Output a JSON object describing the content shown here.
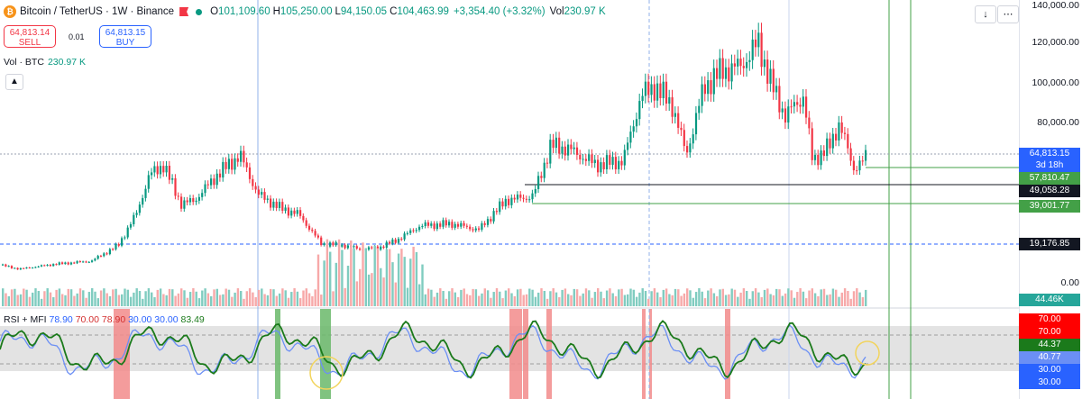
{
  "header": {
    "symbol": "Bitcoin / TetherUS · 1W · Binance",
    "o_label": "O",
    "o_value": "101,109.60",
    "h_label": "H",
    "h_value": "105,250.00",
    "l_label": "L",
    "l_value": "94,150.05",
    "c_label": "C",
    "c_value": "104,463.99",
    "change": "+3,354.40 (+3.32%)",
    "vol_label": "Vol",
    "vol_value": "230.97 K"
  },
  "trade": {
    "sell_price": "64,813.14",
    "sell_label": "SELL",
    "spread": "0.01",
    "buy_price": "64,813.15",
    "buy_label": "BUY"
  },
  "volume_legend": {
    "label": "Vol · BTC",
    "value": "230.97 K"
  },
  "collapse_icon": "▲",
  "controls": {
    "down": "↓",
    "more": "⋯"
  },
  "rsi_legend": {
    "name": "RSI + MFI",
    "v1": "78.90",
    "v2": "70.00",
    "v3": "78.90",
    "v4": "30.00",
    "v5": "30.00",
    "v6": "83.49"
  },
  "price_scale": {
    "ticks": [
      "140,000.00",
      "120,000.00",
      "100,000.00",
      "80,000.00",
      "0.00"
    ]
  },
  "price_labels": {
    "current": "64,813.15",
    "countdown": "3d 18h",
    "level_1": "57,810.47",
    "level_2": "49,058.28",
    "level_3": "39,001.77",
    "level_4": "19,176.85",
    "volume": "44.46K",
    "rsi_1": "70.00",
    "rsi_2": "70.00",
    "rsi_3": "44.37",
    "rsi_4": "40.77",
    "rsi_5": "30.00",
    "rsi_6": "30.00"
  },
  "colors": {
    "up": "#089981",
    "down": "#f23645",
    "rsi": "#1b7a1b",
    "mfi": "#6b8ff5",
    "level_green": "#43a047",
    "level_dark": "#131722",
    "current": "#2962ff"
  }
}
